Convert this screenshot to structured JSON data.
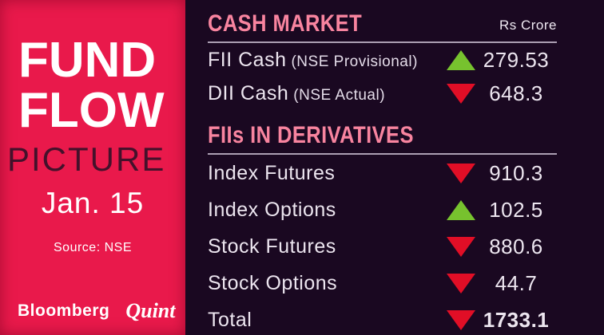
{
  "left_panel": {
    "title_line1": "FUND",
    "title_line2": "FLOW",
    "title_line3": "PICTURE",
    "date": "Jan. 15",
    "source": "Source: NSE",
    "brand": {
      "bloomberg": "Bloomberg",
      "quint": "Quint"
    },
    "colors": {
      "background": "#e9194b",
      "picture_text": "#44112b"
    }
  },
  "right_panel": {
    "unit_label": "Rs Crore",
    "colors": {
      "background": "#1a0821",
      "header_pink": "#f8849f",
      "positive_green": "#77c22e",
      "negative_red": "#e10e26"
    },
    "sections": [
      {
        "title": "CASH MARKET",
        "rows": [
          {
            "label": "FII Cash",
            "sublabel": "(NSE Provisional)",
            "direction": "up",
            "value": "279.53"
          },
          {
            "label": "DII Cash",
            "sublabel": "(NSE Actual)",
            "direction": "down",
            "value": "648.3"
          }
        ]
      },
      {
        "title": "FIIs IN DERIVATIVES",
        "rows": [
          {
            "label": "Index Futures",
            "direction": "down",
            "value": "910.3"
          },
          {
            "label": "Index Options",
            "direction": "up",
            "value": "102.5"
          },
          {
            "label": "Stock Futures",
            "direction": "down",
            "value": "880.6"
          },
          {
            "label": "Stock Options",
            "direction": "down",
            "value": "44.7"
          },
          {
            "label": "Total",
            "direction": "down",
            "value": "1733.1",
            "bold": true
          }
        ]
      }
    ]
  },
  "chart_data": {
    "type": "table",
    "title": "Fund Flow Picture — Jan. 15",
    "unit": "Rs Crore",
    "source": "NSE",
    "sections": [
      {
        "title": "CASH MARKET",
        "rows": [
          {
            "label": "FII Cash (NSE Provisional)",
            "direction": "up",
            "value": 279.53
          },
          {
            "label": "DII Cash (NSE Actual)",
            "direction": "down",
            "value": 648.3
          }
        ]
      },
      {
        "title": "FIIs IN DERIVATIVES",
        "rows": [
          {
            "label": "Index Futures",
            "direction": "down",
            "value": 910.3
          },
          {
            "label": "Index Options",
            "direction": "up",
            "value": 102.5
          },
          {
            "label": "Stock Futures",
            "direction": "down",
            "value": 880.6
          },
          {
            "label": "Stock Options",
            "direction": "down",
            "value": 44.7
          },
          {
            "label": "Total",
            "direction": "down",
            "value": 1733.1
          }
        ]
      }
    ]
  }
}
